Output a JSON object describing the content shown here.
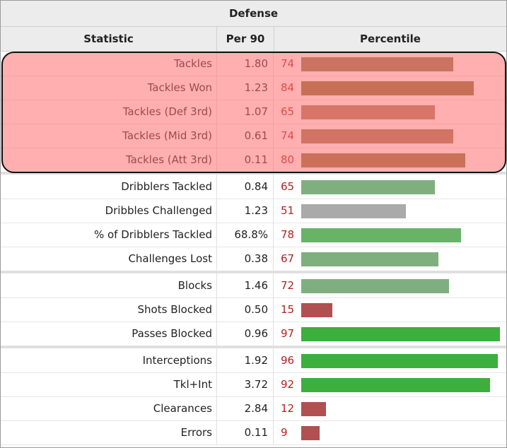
{
  "table": {
    "title": "Defense",
    "columns": [
      "Statistic",
      "Per 90",
      "Percentile"
    ],
    "bar_max_percentile": 100,
    "groups": [
      {
        "rows": [
          {
            "label": "Tackles",
            "per90": "1.80",
            "percentile": 74,
            "color": "#8b7a52"
          },
          {
            "label": "Tackles Won",
            "per90": "1.23",
            "percentile": 84,
            "color": "#85743b"
          },
          {
            "label": "Tackles (Def 3rd)",
            "per90": "1.07",
            "percentile": 65,
            "color": "#a97f63"
          },
          {
            "label": "Tackles (Mid 3rd)",
            "per90": "0.61",
            "percentile": 74,
            "color": "#9b7a57"
          },
          {
            "label": "Tackles (Att 3rd)",
            "per90": "0.11",
            "percentile": 80,
            "color": "#8d7644"
          }
        ]
      },
      {
        "rows": [
          {
            "label": "Dribblers Tackled",
            "per90": "0.84",
            "percentile": 65,
            "color": "#7faf7f"
          },
          {
            "label": "Dribbles Challenged",
            "per90": "1.23",
            "percentile": 51,
            "color": "#aaaaaa"
          },
          {
            "label": "% of Dribblers Tackled",
            "per90": "68.8%",
            "percentile": 78,
            "color": "#68b368"
          },
          {
            "label": "Challenges Lost",
            "per90": "0.38",
            "percentile": 67,
            "color": "#7faf7f"
          }
        ]
      },
      {
        "rows": [
          {
            "label": "Blocks",
            "per90": "1.46",
            "percentile": 72,
            "color": "#7faf7f"
          },
          {
            "label": "Shots Blocked",
            "per90": "0.50",
            "percentile": 15,
            "color": "#b05050"
          },
          {
            "label": "Passes Blocked",
            "per90": "0.96",
            "percentile": 97,
            "color": "#3caf3c"
          }
        ]
      },
      {
        "rows": [
          {
            "label": "Interceptions",
            "per90": "1.92",
            "percentile": 96,
            "color": "#3caf3c"
          },
          {
            "label": "Tkl+Int",
            "per90": "3.72",
            "percentile": 92,
            "color": "#3caf3c"
          },
          {
            "label": "Clearances",
            "per90": "2.84",
            "percentile": 12,
            "color": "#b05050"
          },
          {
            "label": "Errors",
            "per90": "0.11",
            "percentile": 9,
            "color": "#b05050"
          }
        ]
      }
    ],
    "highlight_group": 0,
    "highlight_color": "#ff7070"
  }
}
